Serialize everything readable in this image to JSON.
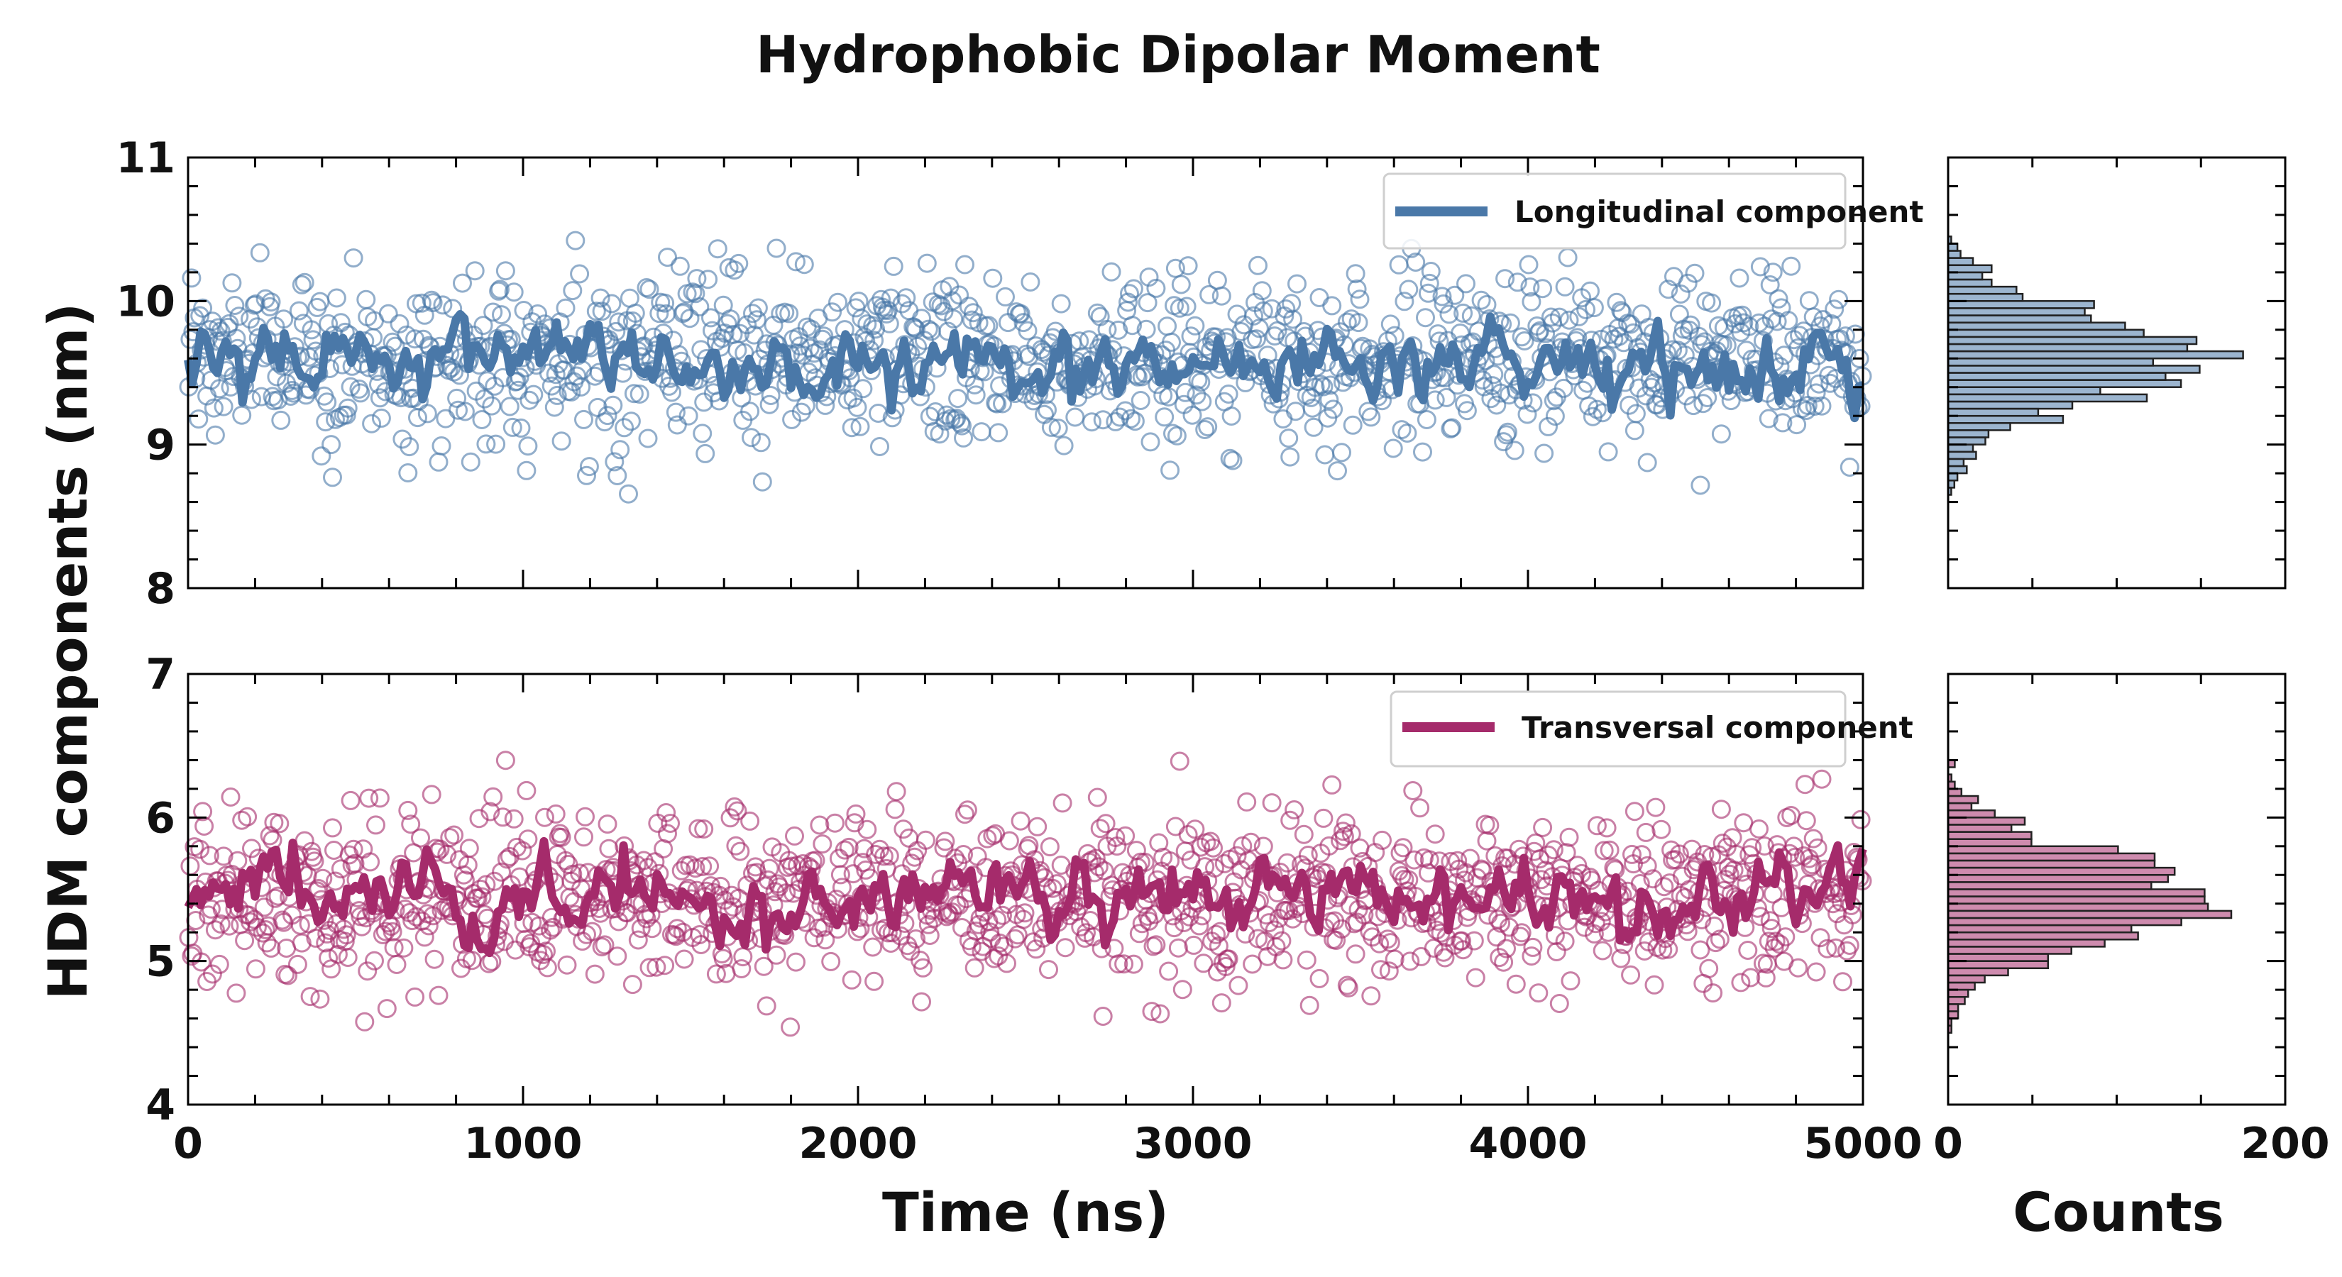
{
  "chart_data": {
    "type": "scatter",
    "title": "Hydrophobic Dipolar Moment",
    "xlabel": "Time (ns)",
    "ylabel": "HDM components (nm)",
    "hist_xlabel": "Counts",
    "xlim": [
      0,
      5000
    ],
    "x_ticks": [
      "0",
      "1000",
      "2000",
      "3000",
      "4000",
      "5000"
    ],
    "hist_xlim": [
      0,
      200
    ],
    "hist_x_ticks": [
      "0",
      "200"
    ],
    "grid": false,
    "legend_position": "top-right",
    "panels": [
      {
        "series_name": "Longitudinal component",
        "color": "#4a78a8",
        "ylim": [
          8,
          11
        ],
        "y_ticks": [
          "8",
          "9",
          "10",
          "11"
        ],
        "mean": 9.6,
        "scatter_sd": 0.3,
        "running_mean_sd": 0.11,
        "n_points": 1200,
        "hist_bin_width": 0.05,
        "hist_peak": 175
      },
      {
        "series_name": "Transversal component",
        "color": "#a52b6b",
        "ylim": [
          4,
          7
        ],
        "y_ticks": [
          "4",
          "5",
          "6",
          "7"
        ],
        "mean": 5.45,
        "scatter_sd": 0.3,
        "running_mean_sd": 0.11,
        "n_points": 1200,
        "hist_bin_width": 0.05,
        "hist_peak": 168
      }
    ]
  }
}
